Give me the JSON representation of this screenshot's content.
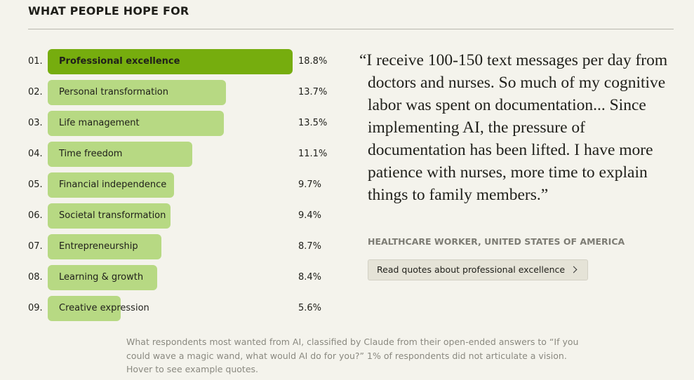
{
  "chart_data": {
    "type": "bar",
    "title": "WHAT PEOPLE HOPE FOR",
    "ranks": [
      "01.",
      "02.",
      "03.",
      "04.",
      "05.",
      "06.",
      "07.",
      "08.",
      "09."
    ],
    "categories": [
      "Professional excellence",
      "Personal transformation",
      "Life management",
      "Time freedom",
      "Financial independence",
      "Societal transformation",
      "Entrepreneurship",
      "Learning & growth",
      "Creative expression"
    ],
    "values": [
      18.8,
      13.7,
      13.5,
      11.1,
      9.7,
      9.4,
      8.7,
      8.4,
      5.6
    ],
    "value_labels": [
      "18.8%",
      "13.7%",
      "13.5%",
      "11.1%",
      "9.7%",
      "9.4%",
      "8.7%",
      "8.4%",
      "5.6%"
    ],
    "colors": [
      "#76ad0e",
      "#b7d983",
      "#b7d983",
      "#b7d983",
      "#b7d983",
      "#b7d983",
      "#b7d983",
      "#b7d983",
      "#b7d983"
    ]
  },
  "quote": {
    "text": "“I receive 100-150 text messages per day from doctors and nurses. So much of my cognitive labor was spent on documentation... Since implementing AI, the pressure of documentation has been lifted. I have more patience with nurses, more time to explain things to family members.”",
    "attribution": "HEALTHCARE WORKER, UNITED STATES OF AMERICA",
    "link": "Read quotes about professional excellence"
  },
  "caption": "What respondents most wanted from AI, classified by Claude from their open-ended answers to “If you could wave a magic wand, what would AI do for you?” 1% of respondents did not articulate a vision. Hover to see example quotes."
}
